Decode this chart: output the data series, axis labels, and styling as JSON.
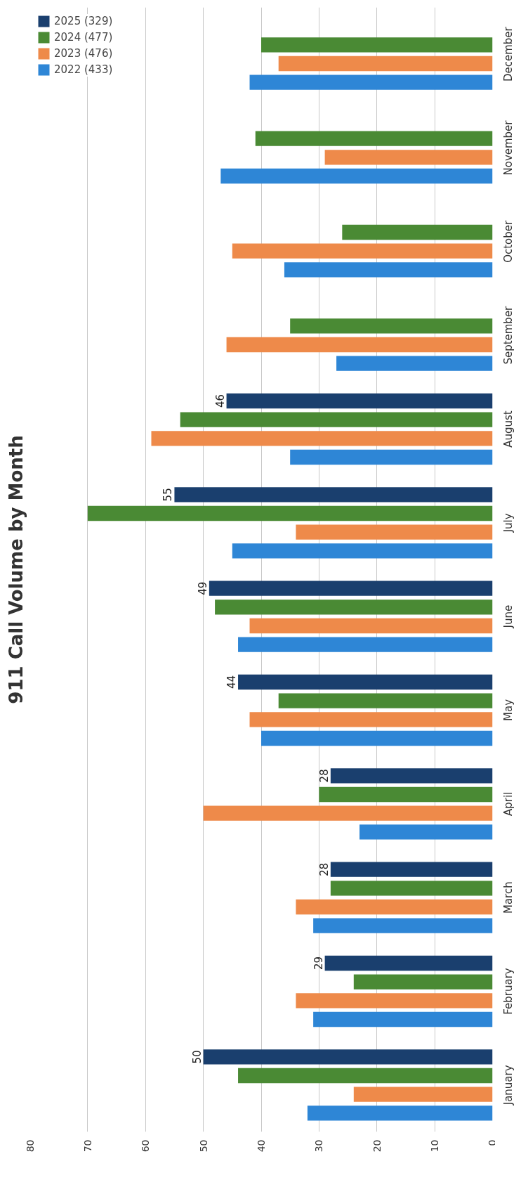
{
  "chart_data": {
    "type": "bar",
    "orientation": "horizontal",
    "title": "911 Call Volume by Month",
    "categories": [
      "December",
      "November",
      "October",
      "September",
      "August",
      "July",
      "June",
      "May",
      "April",
      "March",
      "February",
      "January"
    ],
    "series": [
      {
        "name": "2022 (433)",
        "color": "#2e86d6",
        "values": [
          42,
          47,
          36,
          27,
          35,
          45,
          44,
          40,
          23,
          31,
          31,
          32
        ]
      },
      {
        "name": "2023 (476)",
        "color": "#ee8a4a",
        "values": [
          37,
          29,
          45,
          46,
          59,
          34,
          42,
          42,
          50,
          34,
          34,
          24
        ]
      },
      {
        "name": "2024 (477)",
        "color": "#4a8a34",
        "values": [
          40,
          41,
          26,
          35,
          54,
          70,
          48,
          37,
          30,
          28,
          24,
          44
        ]
      },
      {
        "name": "2025 (329)",
        "color": "#1a3f6e",
        "values": [
          null,
          null,
          null,
          null,
          46,
          55,
          49,
          44,
          28,
          28,
          29,
          50
        ],
        "value_labels": [
          null,
          null,
          null,
          null,
          "46",
          "55",
          "49",
          "44",
          "28",
          "28",
          "29",
          "50"
        ]
      }
    ],
    "xlim": [
      80,
      0
    ],
    "xticks": [
      0,
      10,
      20,
      30,
      40,
      50,
      60,
      70,
      80
    ],
    "grid": "x",
    "legend": "top left"
  }
}
